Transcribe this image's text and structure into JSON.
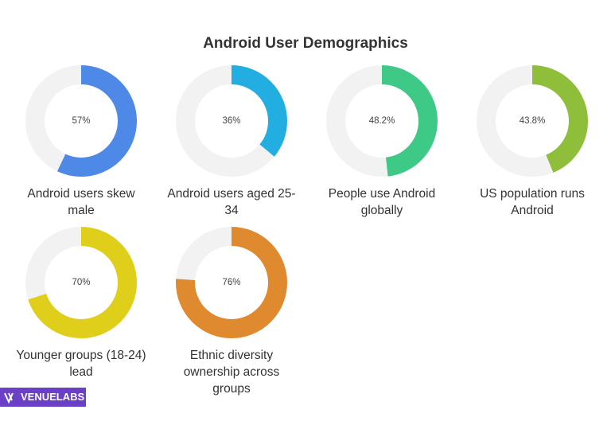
{
  "title": "Android User Demographics",
  "logo": "VENUELABS",
  "chart_data": [
    {
      "type": "donut",
      "title": "Android users skew male",
      "values": [
        57
      ],
      "value_labels": [
        "57%"
      ],
      "color": "#4f89e8"
    },
    {
      "type": "donut",
      "title": "Android users aged 25-34",
      "values": [
        36
      ],
      "value_labels": [
        "36%"
      ],
      "color": "#22aee0"
    },
    {
      "type": "donut",
      "title": "People use Android globally",
      "values": [
        48.2
      ],
      "value_labels": [
        "48.2%"
      ],
      "color": "#3ec986"
    },
    {
      "type": "donut",
      "title": "US population runs Android",
      "values": [
        43.8
      ],
      "value_labels": [
        "43.8%"
      ],
      "color": "#8fbe3a"
    },
    {
      "type": "donut",
      "title": "Younger groups (18-24) lead",
      "values": [
        70
      ],
      "value_labels": [
        "70%"
      ],
      "color": "#e0cf1a"
    },
    {
      "type": "donut",
      "title": "Ethnic diversity ownership across groups",
      "values": [
        76
      ],
      "value_labels": [
        "76%"
      ],
      "color": "#e08a30"
    }
  ]
}
